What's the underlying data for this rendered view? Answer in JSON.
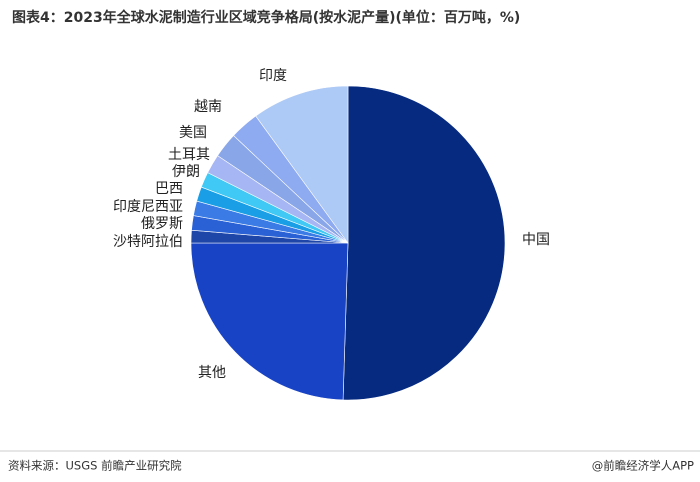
{
  "chart_data": {
    "type": "pie",
    "title": "图表4：2023年全球水泥制造行业区域竞争格局(按水泥产量)(单位：百万吨，%)",
    "categories": [
      "中国",
      "其他",
      "沙特阿拉伯",
      "俄罗斯",
      "印度尼西亚",
      "巴西",
      "伊朗",
      "土耳其",
      "美国",
      "越南",
      "印度"
    ],
    "values": [
      50.5,
      24.5,
      1.3,
      1.5,
      1.5,
      1.5,
      1.6,
      2.0,
      2.6,
      3.0,
      10.0
    ],
    "colors": [
      "#062a80",
      "#1843c4",
      "#1e46a8",
      "#2a62d6",
      "#3a7be6",
      "#1a9fe6",
      "#40c9f4",
      "#a6b6f4",
      "#88a6e8",
      "#8eaaf0",
      "#adc9f5"
    ]
  },
  "footer": {
    "source": "资料来源：USGS 前瞻产业研究院",
    "brand": "@前瞻经济学人APP"
  }
}
